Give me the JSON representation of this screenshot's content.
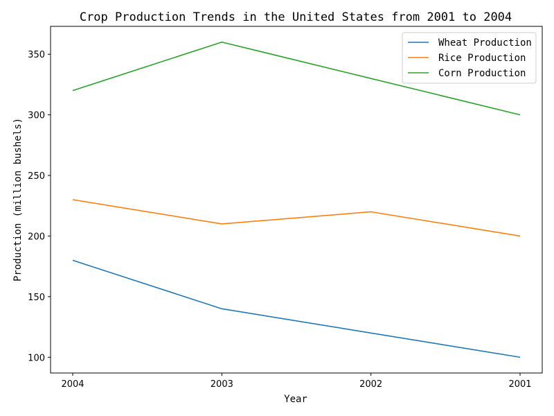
{
  "chart_data": {
    "type": "line",
    "title": "Crop Production Trends in the United States from 2001 to 2004",
    "xlabel": "Year",
    "ylabel": "Production (million bushels)",
    "categories": [
      "2004",
      "2003",
      "2002",
      "2001"
    ],
    "ylim": [
      87,
      373
    ],
    "yticks": [
      100,
      150,
      200,
      250,
      300,
      350
    ],
    "grid": false,
    "legend_position": "upper right",
    "series": [
      {
        "name": "Wheat Production",
        "color": "#1f77b4",
        "values": [
          180,
          140,
          120,
          100
        ]
      },
      {
        "name": "Rice Production",
        "color": "#ff7f0e",
        "values": [
          230,
          210,
          220,
          200
        ]
      },
      {
        "name": "Corn Production",
        "color": "#2ca02c",
        "values": [
          320,
          360,
          330,
          300
        ]
      }
    ]
  }
}
